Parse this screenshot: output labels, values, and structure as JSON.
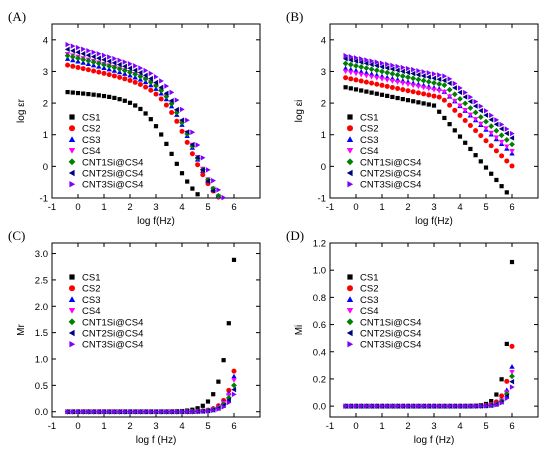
{
  "series_styles": [
    {
      "name": "CS1",
      "color": "#000000",
      "marker": "square"
    },
    {
      "name": "CS2",
      "color": "#ff0000",
      "marker": "circle"
    },
    {
      "name": "CS3",
      "color": "#0000ff",
      "marker": "triangle-up"
    },
    {
      "name": "CS4",
      "color": "#ff00ff",
      "marker": "triangle-down"
    },
    {
      "name": "CNT1Si@CS4",
      "color": "#008000",
      "marker": "diamond"
    },
    {
      "name": "CNT2Si@CS4",
      "color": "#000080",
      "marker": "triangle-left"
    },
    {
      "name": "CNT3Si@CS4",
      "color": "#8000ff",
      "marker": "triangle-right"
    }
  ],
  "chart_data": [
    {
      "panel": "(A)",
      "type": "scatter",
      "xlabel": "log f(Hz)",
      "ylabel": "log εr",
      "xlim": [
        -1,
        7
      ],
      "ylim": [
        -1,
        4.5
      ],
      "xticks": [
        -1,
        0,
        1,
        2,
        3,
        4,
        5,
        6
      ],
      "yticks": [
        -1,
        0,
        1,
        2,
        3,
        4
      ],
      "legend_position": "bottom-left",
      "x_sampling": {
        "start": -0.4,
        "end": 6.0,
        "count": 33
      },
      "series": [
        {
          "name": "CS1",
          "model": "plateau",
          "hi": 2.35,
          "lo": -1.0,
          "fc": 3.6,
          "w": 0.55,
          "tilt": 0.07
        },
        {
          "name": "CS2",
          "model": "plateau",
          "hi": 3.2,
          "lo": -0.35,
          "fc": 4.3,
          "w": 0.55,
          "tilt": 0.18
        },
        {
          "name": "CS3",
          "model": "plateau",
          "hi": 3.4,
          "lo": -0.3,
          "fc": 4.4,
          "w": 0.55,
          "tilt": 0.2
        },
        {
          "name": "CS4",
          "model": "plateau",
          "hi": 3.55,
          "lo": -0.25,
          "fc": 4.45,
          "w": 0.55,
          "tilt": 0.22
        },
        {
          "name": "CNT1Si@CS4",
          "model": "plateau",
          "hi": 3.5,
          "lo": -0.3,
          "fc": 4.4,
          "w": 0.55,
          "tilt": 0.2
        },
        {
          "name": "CNT2Si@CS4",
          "model": "plateau",
          "hi": 3.7,
          "lo": -0.3,
          "fc": 4.45,
          "w": 0.55,
          "tilt": 0.23
        },
        {
          "name": "CNT3Si@CS4",
          "model": "plateau",
          "hi": 3.85,
          "lo": -0.1,
          "fc": 4.6,
          "w": 0.55,
          "tilt": 0.24
        }
      ]
    },
    {
      "panel": "(B)",
      "type": "scatter",
      "xlabel": "log f(Hz)",
      "ylabel": "log εi",
      "xlim": [
        -1,
        7
      ],
      "ylim": [
        -1,
        4.5
      ],
      "xticks": [
        -1,
        0,
        1,
        2,
        3,
        4,
        5,
        6
      ],
      "yticks": [
        -1,
        0,
        1,
        2,
        3,
        4
      ],
      "legend_position": "bottom-left",
      "x_sampling": {
        "start": -0.4,
        "end": 6.0,
        "count": 33
      },
      "series": [
        {
          "name": "CS1",
          "model": "knee",
          "y0": 2.5,
          "slope1": -0.17,
          "knee": 3.0,
          "slope2": -0.98
        },
        {
          "name": "CS2",
          "model": "knee",
          "y0": 2.8,
          "slope1": -0.17,
          "knee": 3.3,
          "slope2": -0.8
        },
        {
          "name": "CS3",
          "model": "knee",
          "y0": 3.1,
          "slope1": -0.18,
          "knee": 3.3,
          "slope2": -0.75
        },
        {
          "name": "CS4",
          "model": "knee",
          "y0": 3.0,
          "slope1": -0.17,
          "knee": 3.4,
          "slope2": -0.72
        },
        {
          "name": "CNT1Si@CS4",
          "model": "knee",
          "y0": 3.25,
          "slope1": -0.18,
          "knee": 3.4,
          "slope2": -0.72
        },
        {
          "name": "CNT2Si@CS4",
          "model": "knee",
          "y0": 3.4,
          "slope1": -0.18,
          "knee": 3.5,
          "slope2": -0.72
        },
        {
          "name": "CNT3Si@CS4",
          "model": "knee",
          "y0": 3.5,
          "slope1": -0.17,
          "knee": 3.5,
          "slope2": -0.72
        }
      ]
    },
    {
      "panel": "(C)",
      "type": "scatter",
      "xlabel": "log f (Hz)",
      "ylabel": "Mr",
      "xlim": [
        -1,
        7
      ],
      "ylim": [
        -0.1,
        3.2
      ],
      "xticks": [
        -1,
        0,
        1,
        2,
        3,
        4,
        5,
        6
      ],
      "yticks": [
        0.0,
        0.5,
        1.0,
        1.5,
        2.0,
        2.5,
        3.0
      ],
      "legend_position": "center-left",
      "x_sampling": {
        "start": -0.4,
        "end": 6.0,
        "count": 33
      },
      "series": [
        {
          "name": "CS1",
          "model": "exp",
          "end_value": 2.88,
          "k": 2.7
        },
        {
          "name": "CS2",
          "model": "exp",
          "end_value": 0.77,
          "k": 3.2
        },
        {
          "name": "CS3",
          "model": "exp",
          "end_value": 0.67,
          "k": 3.2
        },
        {
          "name": "CS4",
          "model": "exp",
          "end_value": 0.6,
          "k": 3.2
        },
        {
          "name": "CNT1Si@CS4",
          "model": "exp",
          "end_value": 0.5,
          "k": 3.2
        },
        {
          "name": "CNT2Si@CS4",
          "model": "exp",
          "end_value": 0.42,
          "k": 3.2
        },
        {
          "name": "CNT3Si@CS4",
          "model": "exp",
          "end_value": 0.33,
          "k": 3.2
        }
      ]
    },
    {
      "panel": "(D)",
      "type": "scatter",
      "xlabel": "log f (Hz)",
      "ylabel": "Mi",
      "xlim": [
        -1,
        7
      ],
      "ylim": [
        -0.08,
        1.2
      ],
      "xticks": [
        -1,
        0,
        1,
        2,
        3,
        4,
        5,
        6
      ],
      "yticks": [
        0.0,
        0.2,
        0.4,
        0.6,
        0.8,
        1.0,
        1.2
      ],
      "legend_position": "center-left",
      "x_sampling": {
        "start": -0.4,
        "end": 6.0,
        "count": 33
      },
      "series": [
        {
          "name": "CS1",
          "model": "exp",
          "end_value": 1.06,
          "k": 4.2
        },
        {
          "name": "CS2",
          "model": "exp",
          "end_value": 0.44,
          "k": 4.4
        },
        {
          "name": "CS3",
          "model": "exp",
          "end_value": 0.29,
          "k": 4.5
        },
        {
          "name": "CS4",
          "model": "exp",
          "end_value": 0.25,
          "k": 4.5
        },
        {
          "name": "CNT1Si@CS4",
          "model": "exp",
          "end_value": 0.22,
          "k": 4.5
        },
        {
          "name": "CNT2Si@CS4",
          "model": "exp",
          "end_value": 0.18,
          "k": 4.5
        },
        {
          "name": "CNT3Si@CS4",
          "model": "exp",
          "end_value": 0.14,
          "k": 4.5
        }
      ]
    }
  ]
}
